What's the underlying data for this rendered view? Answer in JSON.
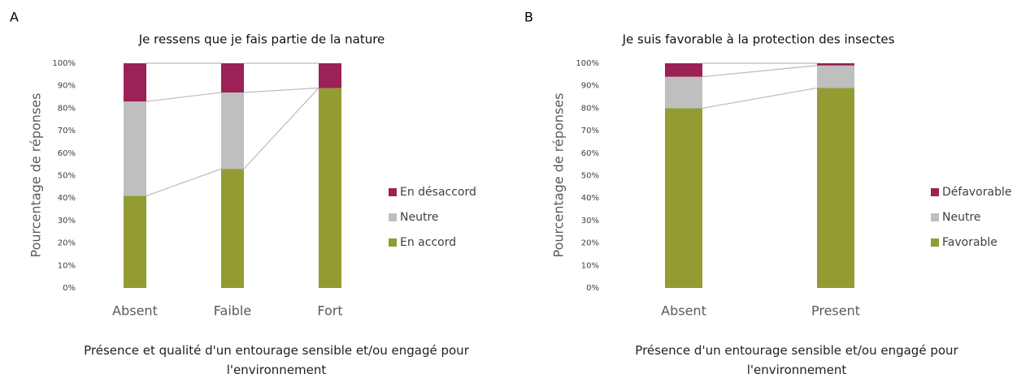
{
  "chart_data": [
    {
      "type": "bar",
      "stacked": true,
      "panel": "A",
      "title": "Je ressens que je fais partie de la nature",
      "ylabel": "Pourcentage de réponses",
      "xlabel": "Présence et qualité d'un entourage sensible et/ou engagé pour l'environnement",
      "categories": [
        "Absent",
        "Faible",
        "Fort"
      ],
      "series": [
        {
          "name": "En accord",
          "color": "#939b33",
          "values": [
            41,
            53,
            89
          ]
        },
        {
          "name": "Neutre",
          "color": "#bfbfbf",
          "values": [
            42,
            34,
            0
          ]
        },
        {
          "name": "En désaccord",
          "color": "#9b2157",
          "values": [
            17,
            13,
            11
          ]
        }
      ],
      "ylim": [
        0,
        100
      ],
      "yticks": [
        {
          "value": 0,
          "label": "0%"
        },
        {
          "value": 10,
          "label": "10%"
        },
        {
          "value": 20,
          "label": "20%"
        },
        {
          "value": 30,
          "label": "30%"
        },
        {
          "value": 40,
          "label": "40%"
        },
        {
          "value": 50,
          "label": "50%"
        },
        {
          "value": 60,
          "label": "60%"
        },
        {
          "value": 70,
          "label": "70%"
        },
        {
          "value": 80,
          "label": "80%"
        },
        {
          "value": 90,
          "label": "90%"
        },
        {
          "value": 100,
          "label": "100%"
        }
      ],
      "grid": false,
      "legend": "right"
    },
    {
      "type": "bar",
      "stacked": true,
      "panel": "B",
      "title": "Je suis favorable à la protection des insectes",
      "ylabel": "Pourcentage de réponses",
      "xlabel": "Présence d'un entourage sensible et/ou engagé pour l'environnement",
      "categories": [
        "Absent",
        "Present"
      ],
      "series": [
        {
          "name": "Favorable",
          "color": "#939b33",
          "values": [
            80,
            89
          ]
        },
        {
          "name": "Neutre",
          "color": "#bfbfbf",
          "values": [
            14,
            10
          ]
        },
        {
          "name": "Défavorable",
          "color": "#9b2157",
          "values": [
            6,
            1
          ]
        }
      ],
      "ylim": [
        0,
        100
      ],
      "yticks": [
        {
          "value": 0,
          "label": "0%"
        },
        {
          "value": 10,
          "label": "10%"
        },
        {
          "value": 20,
          "label": "20%"
        },
        {
          "value": 30,
          "label": "30%"
        },
        {
          "value": 40,
          "label": "40%"
        },
        {
          "value": 50,
          "label": "50%"
        },
        {
          "value": 60,
          "label": "60%"
        },
        {
          "value": 70,
          "label": "70%"
        },
        {
          "value": 80,
          "label": "80%"
        },
        {
          "value": 90,
          "label": "90%"
        },
        {
          "value": 100,
          "label": "100%"
        }
      ],
      "grid": false,
      "legend": "right"
    }
  ]
}
